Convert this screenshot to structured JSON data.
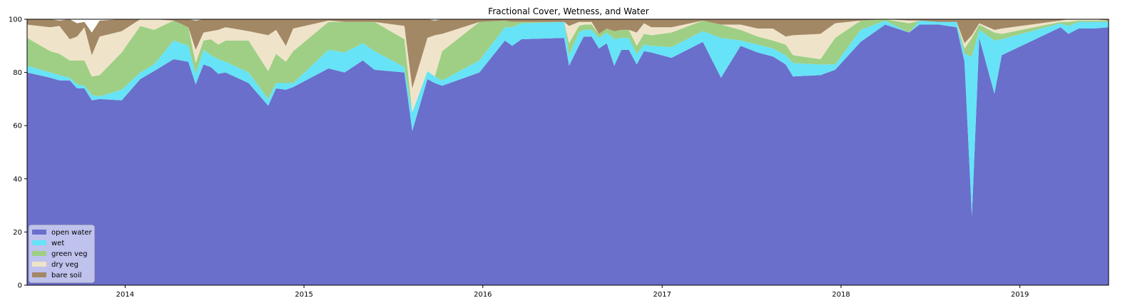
{
  "chart_data": {
    "type": "area",
    "stacked": true,
    "title": "Fractional Cover, Wetness, and Water",
    "xlabel": "",
    "ylabel": "",
    "ylim": [
      0,
      100
    ],
    "xlim": [
      "2013-06-15",
      "2019-07-01"
    ],
    "x_ticks": [
      "2014",
      "2015",
      "2016",
      "2017",
      "2018",
      "2019"
    ],
    "y_ticks": [
      "0",
      "20",
      "40",
      "60",
      "80",
      "100"
    ],
    "grid": false,
    "legend_position": "lower-left",
    "x": [
      "2013-06-15",
      "2013-08-01",
      "2013-08-20",
      "2013-09-10",
      "2013-09-25",
      "2013-10-10",
      "2013-10-25",
      "2013-11-10",
      "2013-12-25",
      "2014-02-01",
      "2014-03-01",
      "2014-04-10",
      "2014-05-10",
      "2014-05-25",
      "2014-06-10",
      "2014-06-25",
      "2014-07-10",
      "2014-07-25",
      "2014-09-10",
      "2014-10-20",
      "2014-11-05",
      "2014-11-25",
      "2014-12-10",
      "2015-02-20",
      "2015-03-25",
      "2015-05-01",
      "2015-05-25",
      "2015-07-25",
      "2015-08-10",
      "2015-09-10",
      "2015-09-25",
      "2015-10-10",
      "2015-12-25",
      "2016-02-15",
      "2016-03-01",
      "2016-03-20",
      "2016-06-15",
      "2016-06-25",
      "2016-07-15",
      "2016-07-25",
      "2016-08-10",
      "2016-08-25",
      "2016-09-10",
      "2016-09-25",
      "2016-10-10",
      "2016-10-25",
      "2016-11-10",
      "2016-11-25",
      "2016-12-10",
      "2017-01-20",
      "2017-03-25",
      "2017-05-01",
      "2017-06-10",
      "2017-07-15",
      "2017-08-15",
      "2017-09-10",
      "2017-09-25",
      "2017-11-20",
      "2017-12-20",
      "2018-02-10",
      "2018-04-01",
      "2018-05-20",
      "2018-06-10",
      "2018-07-20",
      "2018-08-25",
      "2018-09-10",
      "2018-09-25",
      "2018-10-10",
      "2018-11-10",
      "2018-11-25",
      "2019-03-25",
      "2019-04-10",
      "2019-05-01",
      "2019-06-01",
      "2019-07-01"
    ],
    "series": [
      {
        "name": "open water",
        "color": "#6a6fcb",
        "values": [
          80,
          78,
          77,
          77,
          74,
          74,
          69.5,
          70,
          69.5,
          77.5,
          80.5,
          85,
          84,
          75.5,
          83,
          82,
          79.5,
          80,
          76,
          67.5,
          74,
          73.5,
          74.5,
          81.5,
          80,
          84.5,
          81,
          80,
          58,
          77.5,
          76,
          75,
          80,
          92,
          90,
          92.5,
          93,
          82.5,
          90,
          93.5,
          93.5,
          89,
          91,
          82.5,
          88.5,
          88.5,
          83,
          88,
          87.5,
          85.5,
          91.5,
          78,
          90,
          87.5,
          86,
          83,
          78.5,
          79,
          81,
          91.5,
          98,
          95,
          98,
          98,
          97,
          84,
          26,
          93,
          72,
          86.5,
          97,
          94.5,
          96.5,
          96.5,
          97
        ]
      },
      {
        "name": "wet",
        "color": "#66e3f7",
        "values": [
          2.5,
          2,
          2,
          1,
          1.5,
          1,
          2,
          1,
          4,
          2.5,
          2.5,
          7,
          6,
          4,
          5.5,
          4.5,
          5.5,
          4,
          4,
          2.5,
          2,
          2.5,
          1.5,
          7,
          7.5,
          6.5,
          7,
          2,
          7,
          3,
          2.5,
          2,
          4.5,
          5,
          7,
          6,
          6,
          4,
          5,
          2.5,
          2.5,
          4,
          4,
          10,
          4.5,
          4.5,
          4,
          2.5,
          2.5,
          4,
          4,
          15,
          2,
          3,
          3,
          3.5,
          5,
          4,
          2,
          4.5,
          1.5,
          0,
          1.5,
          1,
          2,
          3,
          60,
          3,
          20,
          6,
          1.5,
          3,
          2.5,
          2.5,
          2
        ]
      },
      {
        "name": "green veg",
        "color": "#9ecf85",
        "values": [
          10.5,
          8,
          8,
          6.5,
          9,
          9.5,
          7,
          8,
          14,
          17.5,
          13,
          7.5,
          7,
          4,
          3.5,
          6,
          5.5,
          8,
          12,
          10.5,
          11,
          8,
          12,
          10.5,
          11.5,
          8,
          11,
          10.5,
          0,
          0,
          0,
          11,
          14.5,
          2.5,
          2,
          0.5,
          0,
          4.5,
          2.5,
          2,
          2,
          1.5,
          1.5,
          3,
          3,
          3,
          3,
          4,
          4,
          5.5,
          4,
          5,
          4,
          3,
          3,
          4,
          3,
          2,
          10,
          3.5,
          0.5,
          3.5,
          0,
          0,
          0,
          2,
          7,
          2,
          3,
          2,
          0.5,
          1.5,
          0.5,
          0.5,
          0.5
        ]
      },
      {
        "name": "dry veg",
        "color": "#efe4c9",
        "values": [
          5,
          9,
          10.5,
          8,
          9,
          12.5,
          8,
          14.5,
          8,
          2.5,
          4,
          0,
          0,
          5,
          3,
          3,
          5.5,
          5,
          3.5,
          13.5,
          9,
          6,
          8.5,
          0.5,
          0,
          0,
          0,
          5,
          9,
          12.5,
          15.5,
          6.5,
          0,
          0,
          0,
          0,
          0,
          6.5,
          1.5,
          1,
          1,
          0,
          0,
          0,
          0,
          0,
          5,
          4,
          3,
          2,
          0,
          0,
          2,
          3,
          4.5,
          3,
          7.5,
          9.5,
          5.5,
          0,
          0,
          1,
          0,
          0,
          0,
          2,
          1,
          0.5,
          1,
          2,
          0.5,
          1,
          0.5,
          0.5,
          0
        ]
      },
      {
        "name": "bare soil",
        "color": "#a38866",
        "values": [
          2,
          3,
          2,
          7.5,
          5,
          2,
          8.5,
          6,
          4.5,
          0,
          0,
          0.5,
          3,
          11,
          5,
          4.5,
          4,
          3,
          4.5,
          6,
          4,
          10,
          3.5,
          0.5,
          1.5,
          1.5,
          1,
          2.5,
          26,
          7,
          5.5,
          5.5,
          1,
          0.5,
          1,
          1,
          1,
          2.5,
          1,
          1,
          1,
          5.5,
          3.5,
          4.5,
          4,
          4,
          5,
          1.5,
          3,
          3,
          0.5,
          2,
          2,
          3.5,
          3.5,
          6.5,
          6,
          5.5,
          1.5,
          0.5,
          0,
          0.5,
          0.5,
          1,
          1,
          9,
          6,
          1.5,
          4,
          3.5,
          0.5,
          0,
          0,
          0,
          0.5
        ]
      }
    ]
  }
}
